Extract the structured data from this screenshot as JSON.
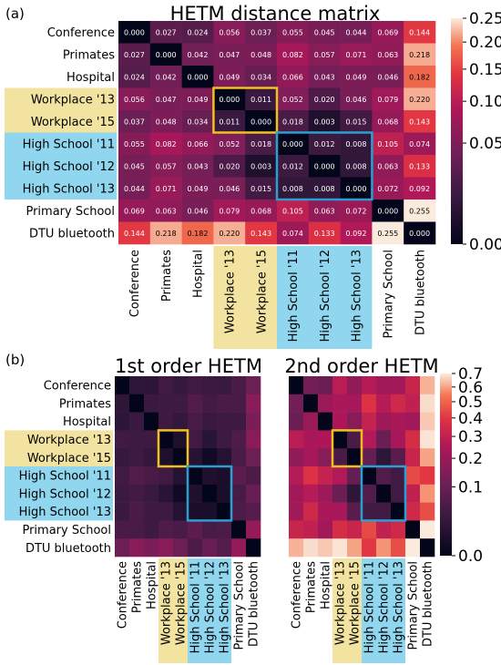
{
  "panel_a": {
    "label": "(a)",
    "title": "HETM distance matrix"
  },
  "panel_b": {
    "label": "(b)",
    "title_1": "1st order HETM",
    "title_2": "2nd order HETM"
  },
  "colors": {
    "workplace_highlight": "#f3e3a0",
    "workplace_box": "#f0c020",
    "highschool_highlight": "#8fd6ee",
    "highschool_box": "#2a9fd0"
  },
  "chart_data": [
    {
      "type": "heatmap",
      "title": "HETM distance matrix",
      "rows": [
        "Conference",
        "Primates",
        "Hospital",
        "Workplace '13",
        "Workplace '15",
        "High School '11",
        "High School '12",
        "High School '13",
        "Primary School",
        "DTU bluetooth"
      ],
      "cols": [
        "Conference",
        "Primates",
        "Hospital",
        "Workplace '13",
        "Workplace '15",
        "High School '11",
        "High School '12",
        "High School '13",
        "Primary School",
        "DTU bluetooth"
      ],
      "values": [
        [
          0.0,
          0.027,
          0.024,
          0.056,
          0.037,
          0.055,
          0.045,
          0.044,
          0.069,
          0.144
        ],
        [
          0.027,
          0.0,
          0.042,
          0.047,
          0.048,
          0.082,
          0.057,
          0.071,
          0.063,
          0.218
        ],
        [
          0.024,
          0.042,
          0.0,
          0.049,
          0.034,
          0.066,
          0.043,
          0.049,
          0.046,
          0.182
        ],
        [
          0.056,
          0.047,
          0.049,
          0.0,
          0.011,
          0.052,
          0.02,
          0.046,
          0.079,
          0.22
        ],
        [
          0.037,
          0.048,
          0.034,
          0.011,
          0.0,
          0.018,
          0.003,
          0.015,
          0.068,
          0.143
        ],
        [
          0.055,
          0.082,
          0.066,
          0.052,
          0.018,
          0.0,
          0.012,
          0.008,
          0.105,
          0.074
        ],
        [
          0.045,
          0.057,
          0.043,
          0.02,
          0.003,
          0.012,
          0.0,
          0.008,
          0.063,
          0.133
        ],
        [
          0.044,
          0.071,
          0.049,
          0.046,
          0.015,
          0.008,
          0.008,
          0.0,
          0.072,
          0.092
        ],
        [
          0.069,
          0.063,
          0.046,
          0.079,
          0.068,
          0.105,
          0.063,
          0.072,
          0.0,
          0.255
        ],
        [
          0.144,
          0.218,
          0.182,
          0.22,
          0.143,
          0.074,
          0.133,
          0.092,
          0.255,
          0.0
        ]
      ],
      "colorbar_ticks": [
        "0.00",
        "0.05",
        "0.10",
        "0.15",
        "0.20",
        "0.25"
      ],
      "colorbar_range": [
        0,
        0.25
      ],
      "color_scale": "sqrt"
    },
    {
      "type": "heatmap",
      "title": "1st order HETM",
      "rows": [
        "Conference",
        "Primates",
        "Hospital",
        "Workplace '13",
        "Workplace '15",
        "High School '11",
        "High School '12",
        "High School '13",
        "Primary School",
        "DTU bluetooth"
      ],
      "cols": [
        "Conference",
        "Primates",
        "Hospital",
        "Workplace '13",
        "Workplace '15",
        "High School '11",
        "High School '12",
        "High School '13",
        "Primary School",
        "DTU bluetooth"
      ],
      "values": [
        [
          0.0,
          0.02,
          0.018,
          0.04,
          0.027,
          0.04,
          0.033,
          0.032,
          0.05,
          0.105
        ],
        [
          0.02,
          0.0,
          0.031,
          0.034,
          0.035,
          0.06,
          0.042,
          0.052,
          0.046,
          0.16
        ],
        [
          0.018,
          0.031,
          0.0,
          0.036,
          0.025,
          0.048,
          0.031,
          0.036,
          0.034,
          0.133
        ],
        [
          0.04,
          0.034,
          0.036,
          0.0,
          0.008,
          0.038,
          0.015,
          0.034,
          0.058,
          0.161
        ],
        [
          0.027,
          0.035,
          0.025,
          0.008,
          0.0,
          0.013,
          0.002,
          0.011,
          0.05,
          0.105
        ],
        [
          0.04,
          0.06,
          0.048,
          0.038,
          0.013,
          0.0,
          0.009,
          0.006,
          0.077,
          0.054
        ],
        [
          0.033,
          0.042,
          0.031,
          0.015,
          0.002,
          0.009,
          0.0,
          0.006,
          0.046,
          0.097
        ],
        [
          0.032,
          0.052,
          0.036,
          0.034,
          0.011,
          0.006,
          0.006,
          0.0,
          0.053,
          0.067
        ],
        [
          0.05,
          0.046,
          0.034,
          0.058,
          0.05,
          0.077,
          0.046,
          0.053,
          0.0,
          0.186
        ],
        [
          0.105,
          0.16,
          0.133,
          0.161,
          0.105,
          0.054,
          0.097,
          0.067,
          0.186,
          0.0
        ]
      ],
      "colorbar_range": [
        0,
        0.7
      ],
      "color_scale": "sqrt"
    },
    {
      "type": "heatmap",
      "title": "2nd order HETM",
      "rows": [
        "Conference",
        "Primates",
        "Hospital",
        "Workplace '13",
        "Workplace '15",
        "High School '11",
        "High School '12",
        "High School '13",
        "Primary School",
        "DTU bluetooth"
      ],
      "cols": [
        "Conference",
        "Primates",
        "Hospital",
        "Workplace '13",
        "Workplace '15",
        "High School '11",
        "High School '12",
        "High School '13",
        "Primary School",
        "DTU bluetooth"
      ],
      "values": [
        [
          0.0,
          0.12,
          0.1,
          0.28,
          0.18,
          0.27,
          0.22,
          0.22,
          0.32,
          0.62
        ],
        [
          0.12,
          0.0,
          0.2,
          0.24,
          0.23,
          0.38,
          0.27,
          0.34,
          0.3,
          0.68
        ],
        [
          0.1,
          0.2,
          0.0,
          0.25,
          0.16,
          0.31,
          0.21,
          0.24,
          0.22,
          0.65
        ],
        [
          0.28,
          0.24,
          0.25,
          0.0,
          0.05,
          0.26,
          0.1,
          0.23,
          0.36,
          0.69
        ],
        [
          0.18,
          0.23,
          0.16,
          0.05,
          0.0,
          0.09,
          0.02,
          0.07,
          0.32,
          0.6
        ],
        [
          0.27,
          0.38,
          0.31,
          0.26,
          0.09,
          0.0,
          0.06,
          0.04,
          0.44,
          0.4
        ],
        [
          0.22,
          0.27,
          0.21,
          0.1,
          0.02,
          0.06,
          0.0,
          0.04,
          0.3,
          0.58
        ],
        [
          0.22,
          0.34,
          0.24,
          0.23,
          0.07,
          0.04,
          0.04,
          0.0,
          0.34,
          0.45
        ],
        [
          0.32,
          0.3,
          0.22,
          0.36,
          0.32,
          0.44,
          0.3,
          0.34,
          0.0,
          0.7
        ],
        [
          0.62,
          0.68,
          0.65,
          0.69,
          0.6,
          0.4,
          0.58,
          0.45,
          0.7,
          0.0
        ]
      ],
      "colorbar_ticks": [
        "0.0",
        "0.1",
        "0.2",
        "0.3",
        "0.4",
        "0.5",
        "0.6",
        "0.7"
      ],
      "colorbar_range": [
        0,
        0.7
      ],
      "color_scale": "sqrt"
    }
  ]
}
